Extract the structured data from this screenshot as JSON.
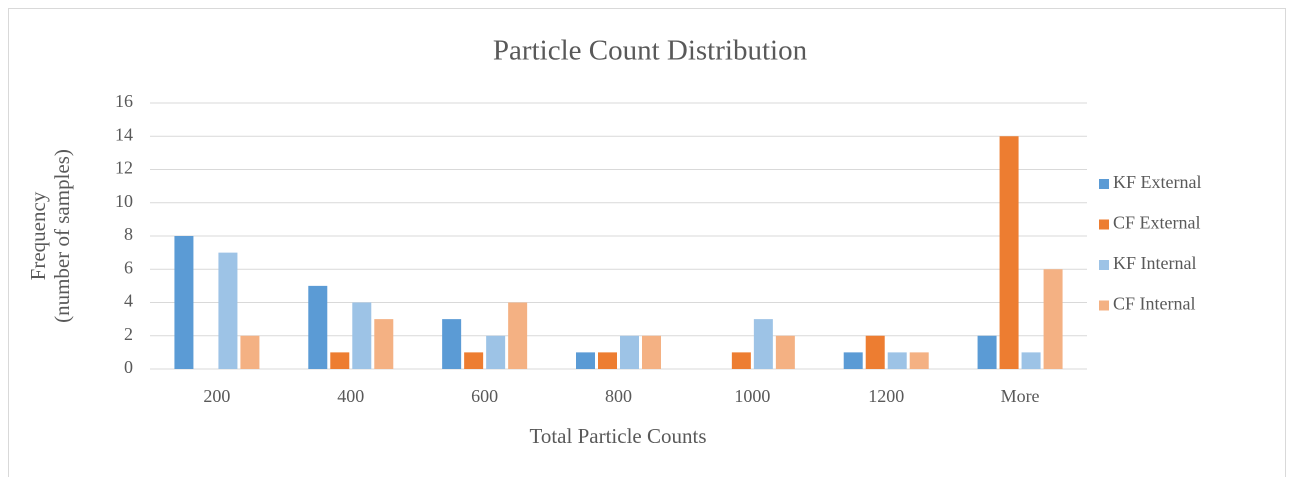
{
  "chart_data": {
    "type": "bar",
    "title": "Particle Count Distribution",
    "x_label": "Total Particle  Counts",
    "y_label": [
      "Frequency",
      "(number of samples)"
    ],
    "categories": [
      "200",
      "400",
      "600",
      "800",
      "1000",
      "1200",
      "More"
    ],
    "series": [
      {
        "name": "KF External",
        "color": "#5b9bd5",
        "values": [
          8,
          5,
          3,
          1,
          0,
          1,
          2
        ]
      },
      {
        "name": "CF External",
        "color": "#ed7d31",
        "values": [
          0,
          1,
          1,
          1,
          1,
          2,
          14
        ]
      },
      {
        "name": "KF Internal",
        "color": "#9dc3e6",
        "values": [
          7,
          4,
          2,
          2,
          3,
          1,
          1
        ]
      },
      {
        "name": "CF Internal",
        "color": "#f4b183",
        "values": [
          2,
          3,
          4,
          2,
          2,
          1,
          6
        ]
      }
    ],
    "ylim": [
      0,
      16
    ],
    "yticks": [
      0,
      2,
      4,
      6,
      8,
      10,
      12,
      14,
      16
    ],
    "grid": true,
    "legend": "right"
  }
}
